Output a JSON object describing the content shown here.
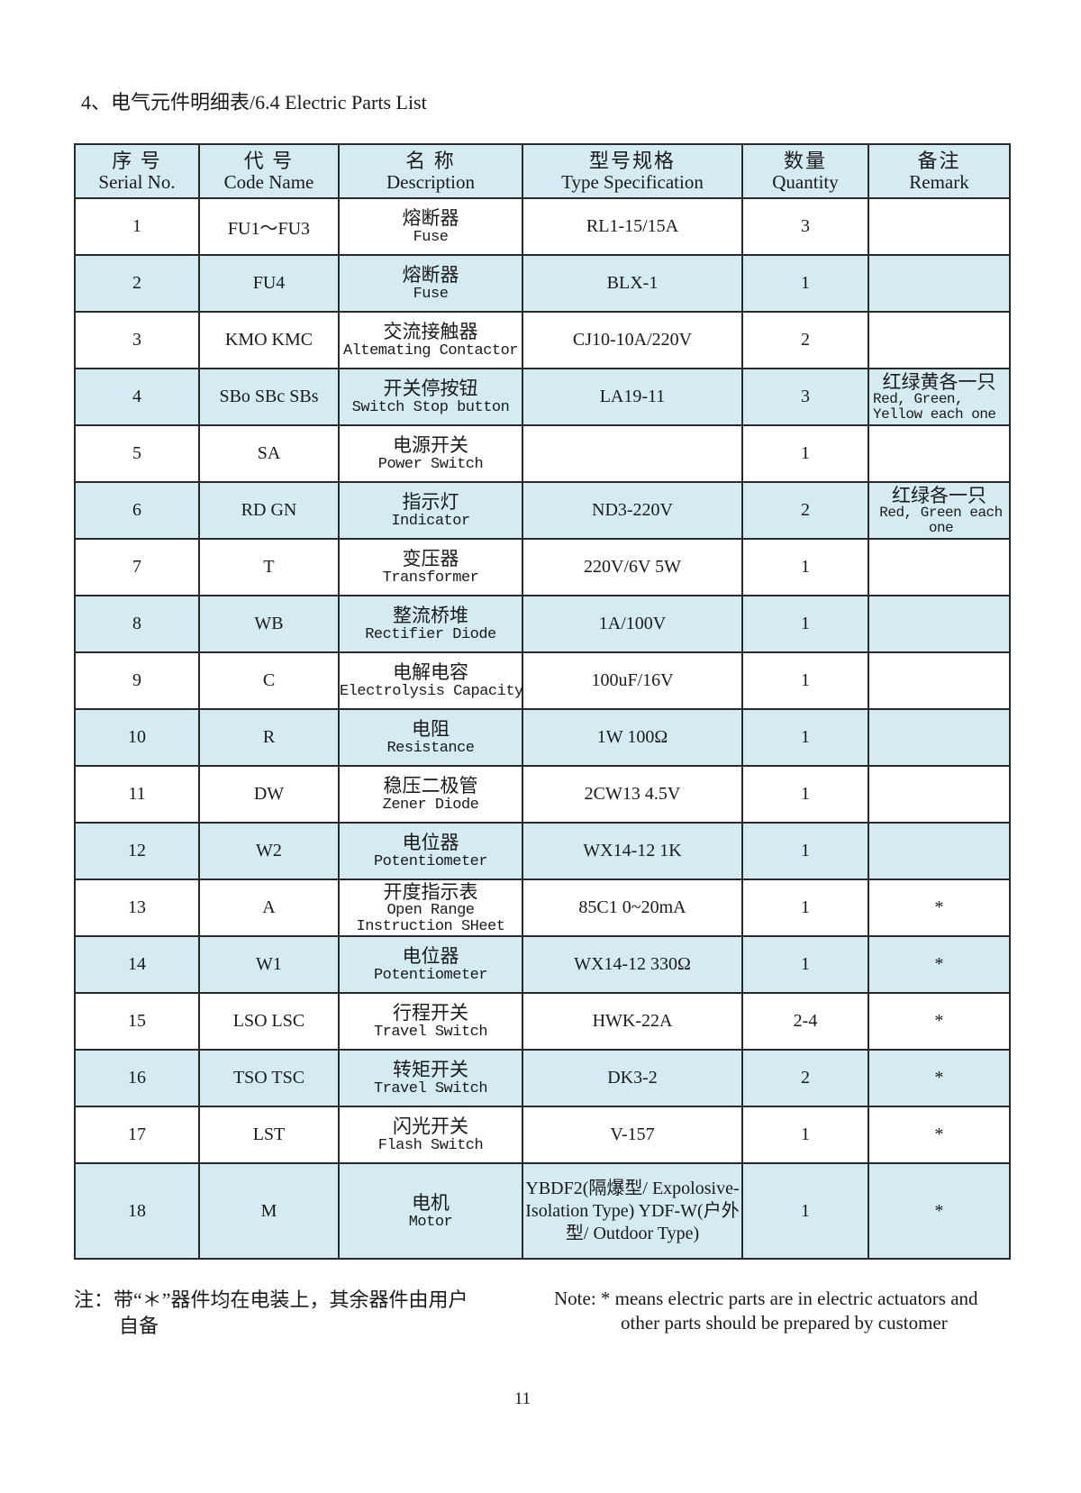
{
  "title": "4、电气元件明细表/6.4 Electric Parts List",
  "colors": {
    "row_highlight": "#d5ebf2",
    "border": "#2a2a2a"
  },
  "headers": [
    {
      "cn": "序 号",
      "en": "Serial No."
    },
    {
      "cn": "代 号",
      "en": "Code Name"
    },
    {
      "cn": "名 称",
      "en": "Description"
    },
    {
      "cn": "型号规格",
      "en": "Type Specification"
    },
    {
      "cn": "数量",
      "en": "Quantity"
    },
    {
      "cn": "备注",
      "en": "Remark"
    }
  ],
  "rows": [
    {
      "no": "1",
      "code": "FU1～FU3",
      "desc_cn": "熔断器",
      "desc_en": "Fuse",
      "spec": "RL1-15/15A",
      "qty": "3",
      "remark_cn": "",
      "remark_en": ""
    },
    {
      "no": "2",
      "code": "FU4",
      "desc_cn": "熔断器",
      "desc_en": "Fuse",
      "spec": "BLX-1",
      "qty": "1",
      "remark_cn": "",
      "remark_en": ""
    },
    {
      "no": "3",
      "code": "KMO KMC",
      "desc_cn": "交流接触器",
      "desc_en": "Altemating Contactor",
      "spec": "CJ10-10A/220V",
      "qty": "2",
      "remark_cn": "",
      "remark_en": ""
    },
    {
      "no": "4",
      "code": "SBo SBc SBs",
      "desc_cn": "开关停按钮",
      "desc_en": "Switch Stop button",
      "spec": "LA19-11",
      "qty": "3",
      "remark_cn": "红绿黄各一只",
      "remark_en": "Red, Green, Yellow each one"
    },
    {
      "no": "5",
      "code": "SA",
      "desc_cn": "电源开关",
      "desc_en": "Power Switch",
      "spec": "",
      "qty": "1",
      "remark_cn": "",
      "remark_en": ""
    },
    {
      "no": "6",
      "code": "RD GN",
      "desc_cn": "指示灯",
      "desc_en": "Indicator",
      "spec": "ND3-220V",
      "qty": "2",
      "remark_cn": "红绿各一只",
      "remark_en": "Red, Green each one"
    },
    {
      "no": "7",
      "code": "T",
      "desc_cn": "变压器",
      "desc_en": "Transformer",
      "spec": "220V/6V 5W",
      "qty": "1",
      "remark_cn": "",
      "remark_en": ""
    },
    {
      "no": "8",
      "code": "WB",
      "desc_cn": "整流桥堆",
      "desc_en": "Rectifier Diode",
      "spec": "1A/100V",
      "qty": "1",
      "remark_cn": "",
      "remark_en": ""
    },
    {
      "no": "9",
      "code": "C",
      "desc_cn": "电解电容",
      "desc_en": "Electrolysis Capacity",
      "spec": "100uF/16V",
      "qty": "1",
      "remark_cn": "",
      "remark_en": ""
    },
    {
      "no": "10",
      "code": "R",
      "desc_cn": "电阻",
      "desc_en": "Resistance",
      "spec": "1W 100Ω",
      "qty": "1",
      "remark_cn": "",
      "remark_en": ""
    },
    {
      "no": "11",
      "code": "DW",
      "desc_cn": "稳压二极管",
      "desc_en": "Zener Diode",
      "spec": "2CW13 4.5V",
      "qty": "1",
      "remark_cn": "",
      "remark_en": ""
    },
    {
      "no": "12",
      "code": "W2",
      "desc_cn": "电位器",
      "desc_en": "Potentiometer",
      "spec": "WX14-12 1K",
      "qty": "1",
      "remark_cn": "",
      "remark_en": ""
    },
    {
      "no": "13",
      "code": "A",
      "desc_cn": "开度指示表",
      "desc_en": "Open Range Instruction SHeet",
      "spec": "85C1 0~20mA",
      "qty": "1",
      "remark_cn": "*",
      "remark_en": ""
    },
    {
      "no": "14",
      "code": "W1",
      "desc_cn": "电位器",
      "desc_en": "Potentiometer",
      "spec": "WX14-12  330Ω",
      "qty": "1",
      "remark_cn": "*",
      "remark_en": ""
    },
    {
      "no": "15",
      "code": "LSO LSC",
      "desc_cn": "行程开关",
      "desc_en": "Travel Switch",
      "spec": "HWK-22A",
      "qty": "2-4",
      "remark_cn": "*",
      "remark_en": ""
    },
    {
      "no": "16",
      "code": "TSO TSC",
      "desc_cn": "转矩开关",
      "desc_en": "Travel Switch",
      "spec": "DK3-2",
      "qty": "2",
      "remark_cn": "*",
      "remark_en": ""
    },
    {
      "no": "17",
      "code": "LST",
      "desc_cn": "闪光开关",
      "desc_en": "Flash Switch",
      "spec": "V-157",
      "qty": "1",
      "remark_cn": "*",
      "remark_en": ""
    },
    {
      "no": "18",
      "code": "M",
      "desc_cn": "电机",
      "desc_en": "Motor",
      "spec": "YBDF2(隔爆型/ Expolosive-Isolation Type) YDF-W(户外型/ Outdoor Type)",
      "qty": "1",
      "remark_cn": "*",
      "remark_en": ""
    }
  ],
  "note_cn": {
    "line1": "注：带“＊”器件均在电装上，其余器件由用户",
    "line2": "自备"
  },
  "note_en": {
    "line1": "Note: * means electric parts are in electric actuators and",
    "line2": "other parts should be prepared by customer"
  },
  "page_number": "11"
}
